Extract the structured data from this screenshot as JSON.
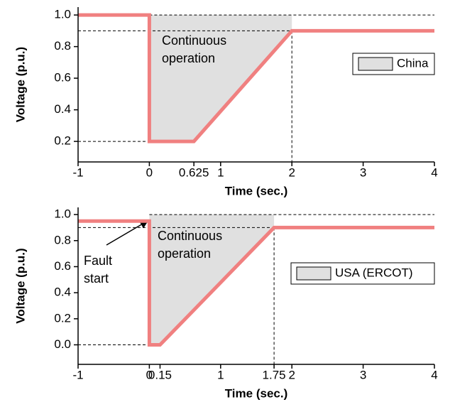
{
  "chart_data": [
    {
      "type": "line",
      "xlabel": "Time (sec.)",
      "ylabel": "Voltage (p.u.)",
      "xlim": [
        -1,
        4
      ],
      "xticks": [
        -1,
        0,
        0.625,
        1,
        2,
        3,
        4
      ],
      "ylim": [
        0.07,
        1.05
      ],
      "yticks": [
        0.2,
        0.4,
        0.6,
        0.8,
        {
          "value": 1,
          "label": "1.0"
        }
      ],
      "line": {
        "color": "#f08080",
        "x": [
          -1,
          0,
          0,
          0.625,
          2,
          4
        ],
        "y": [
          1,
          1,
          0.2,
          0.2,
          0.9,
          0.9
        ]
      },
      "fill": {
        "name": "China",
        "color": "#e0e0e0",
        "x": [
          0,
          0.625,
          2
        ],
        "lower": [
          0.2,
          0.2,
          0.9
        ],
        "upper": [
          1,
          1,
          1
        ]
      },
      "ref_lines": [
        {
          "x": [
            0,
            4
          ],
          "y": [
            1,
            1
          ]
        },
        {
          "x": [
            -1,
            2
          ],
          "y": [
            0.9,
            0.9
          ]
        },
        {
          "x": [
            -1,
            0
          ],
          "y": [
            0.2,
            0.2
          ]
        }
      ],
      "vlines": [
        {
          "x": 2,
          "from": 0.9
        }
      ],
      "annotations": [
        "Continuous operation"
      ]
    },
    {
      "type": "line",
      "xlabel": "Time (sec.)",
      "ylabel": "Voltage (p.u.)",
      "xlim": [
        -1,
        4
      ],
      "xticks": [
        -1,
        0,
        0.15,
        1,
        1.75,
        2,
        3,
        4
      ],
      "ylim": [
        -0.15,
        1.055
      ],
      "yticks": [
        {
          "value": 0,
          "label": "0.0"
        },
        0.2,
        0.4,
        0.6,
        0.8,
        {
          "value": 1,
          "label": "1.0"
        }
      ],
      "line": {
        "color": "#f08080",
        "x": [
          -1,
          0,
          0,
          0.15,
          1.75,
          4
        ],
        "y": [
          0.95,
          0.95,
          0,
          0,
          0.9,
          0.9
        ]
      },
      "fill": {
        "name": "USA (ERCOT)",
        "color": "#e0e0e0",
        "x": [
          0,
          0.15,
          1.75
        ],
        "lower": [
          0,
          0,
          0.9
        ],
        "upper": [
          1,
          1,
          1
        ]
      },
      "ref_lines": [
        {
          "x": [
            0,
            4
          ],
          "y": [
            1,
            1
          ]
        },
        {
          "x": [
            -1,
            1.75
          ],
          "y": [
            0.9,
            0.9
          ]
        },
        {
          "x": [
            -1,
            0
          ],
          "y": [
            0,
            0
          ]
        }
      ],
      "vlines": [
        {
          "x": 1.75,
          "from": 0.9
        }
      ],
      "annotations": [
        "Continuous operation",
        "Fault start"
      ]
    }
  ]
}
